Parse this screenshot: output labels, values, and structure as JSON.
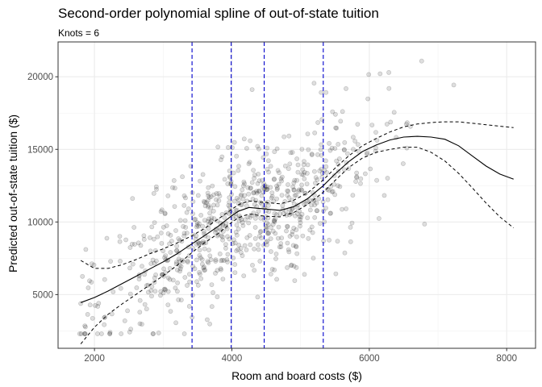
{
  "chart_data": {
    "type": "scatter",
    "title": "Second-order polynomial spline of out-of-state tuition",
    "subtitle": "Knots = 6",
    "xlabel": "Room and board costs ($)",
    "ylabel": "Predicted out-of-state tuition ($)",
    "xlim": [
      1470,
      8420
    ],
    "ylim": [
      1300,
      22400
    ],
    "x_ticks": [
      2000,
      4000,
      6000,
      8000
    ],
    "y_ticks": [
      5000,
      10000,
      15000,
      20000
    ],
    "x_tick_labels": [
      "2000",
      "4000",
      "6000",
      "8000"
    ],
    "y_tick_labels": [
      "5000",
      "10000",
      "15000",
      "20000"
    ],
    "grid": true,
    "knots": [
      3420,
      3990,
      4470,
      5330
    ],
    "knot_color": "#0000cc",
    "point_color": "#000000",
    "fit": {
      "x": [
        1800,
        2000,
        2200,
        2400,
        2600,
        2800,
        3000,
        3200,
        3420,
        3600,
        3800,
        3990,
        4100,
        4250,
        4470,
        4700,
        4900,
        5100,
        5330,
        5500,
        5700,
        5900,
        6100,
        6300,
        6500,
        6700,
        6900,
        7100,
        7300,
        7500,
        7700,
        7900,
        8100
      ],
      "y": [
        4450,
        4800,
        5250,
        5750,
        6250,
        6750,
        7250,
        7800,
        8500,
        9050,
        9700,
        10400,
        10750,
        11000,
        10900,
        10800,
        11050,
        11600,
        12500,
        13300,
        14150,
        14850,
        15300,
        15650,
        15850,
        15900,
        15850,
        15700,
        15250,
        14550,
        13850,
        13300,
        12950
      ]
    },
    "lower": {
      "x": [
        1800,
        2000,
        2200,
        2400,
        2600,
        2800,
        3000,
        3200,
        3420,
        3600,
        3800,
        3990,
        4100,
        4250,
        4470,
        4700,
        4900,
        5100,
        5330,
        5500,
        5700,
        5900,
        6100,
        6300,
        6500,
        6700,
        6900,
        7100,
        7300,
        7500,
        7700,
        7900,
        8100
      ],
      "y": [
        1600,
        2750,
        3650,
        4350,
        5000,
        5650,
        6300,
        7000,
        7900,
        8550,
        9200,
        9950,
        10300,
        10550,
        10400,
        10350,
        10650,
        11200,
        12050,
        12850,
        13750,
        14400,
        14800,
        15000,
        15150,
        15150,
        14800,
        14200,
        13350,
        12350,
        11300,
        10350,
        9600
      ]
    },
    "upper": {
      "x": [
        1800,
        2000,
        2200,
        2400,
        2600,
        2800,
        3000,
        3200,
        3420,
        3600,
        3800,
        3990,
        4100,
        4250,
        4470,
        4700,
        4900,
        5100,
        5330,
        5500,
        5700,
        5900,
        6100,
        6300,
        6500,
        6700,
        6900,
        7100,
        7300,
        7500,
        7700,
        7900,
        8100
      ],
      "y": [
        7350,
        6800,
        6800,
        7050,
        7400,
        7800,
        8150,
        8550,
        9050,
        9550,
        10200,
        10850,
        11200,
        11450,
        11350,
        11250,
        11500,
        12000,
        12900,
        13700,
        14550,
        15250,
        15750,
        16200,
        16550,
        16750,
        16850,
        16900,
        16900,
        16800,
        16700,
        16600,
        16500
      ]
    }
  }
}
